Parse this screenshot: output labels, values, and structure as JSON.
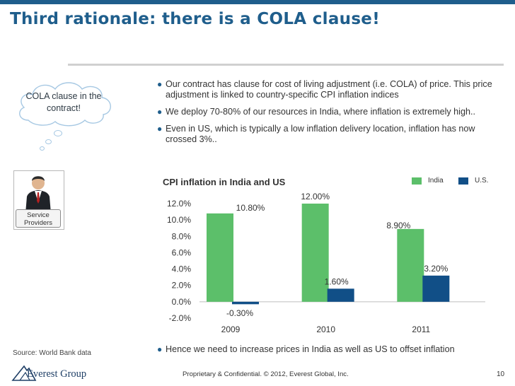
{
  "slide": {
    "title": "Third rationale: there is a COLA clause!",
    "cloud_text": "COLA clause in the contract!",
    "tag_text": "Service Providers",
    "bullets": [
      "Our contract has clause for cost of living adjustment (i.e. COLA) of price. This price adjustment is linked to country-specific CPI inflation indices",
      "We deploy 70-80% of our resources in India, where inflation is extremely high..",
      "Even in US, which is typically a low inflation delivery location, inflation has now crossed 3%..",
      "Hence we need to increase prices in India as well as US to offset inflation"
    ],
    "source": "Source:    World Bank data",
    "logo_text": "Everest Group",
    "footer": "Proprietary & Confidential. © 2012, Everest Global, Inc.",
    "page_number": "10"
  },
  "colors": {
    "brand": "#1f5e8c",
    "india": "#5cbf6a",
    "us": "#114f87"
  },
  "chart_data": {
    "type": "bar",
    "title": "CPI inflation in India and US",
    "categories": [
      "2009",
      "2010",
      "2011"
    ],
    "series": [
      {
        "name": "India",
        "values": [
          10.8,
          12.0,
          8.9
        ],
        "labels": [
          "10.80%",
          "12.00%",
          "8.90%"
        ]
      },
      {
        "name": "U.S.",
        "values": [
          -0.3,
          1.6,
          3.2
        ],
        "labels": [
          "-0.30%",
          "1.60%",
          "3.20%"
        ]
      }
    ],
    "yticks": [
      "12.0%",
      "10.0%",
      "8.0%",
      "6.0%",
      "4.0%",
      "2.0%",
      "0.0%",
      "-2.0%"
    ],
    "ylim": [
      -2,
      12
    ],
    "legend": "top-right"
  }
}
